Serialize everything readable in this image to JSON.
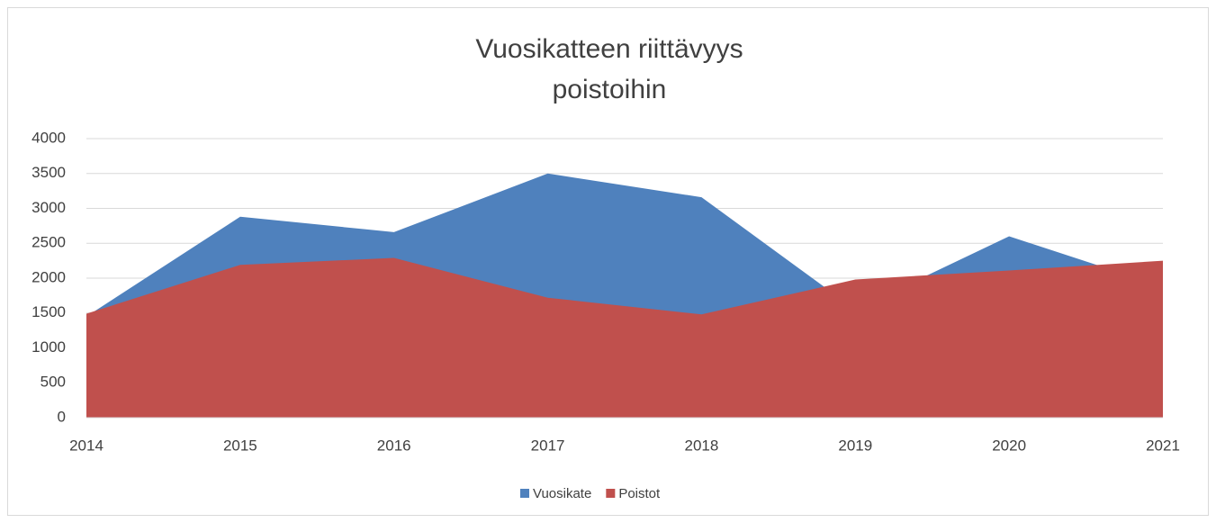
{
  "chart_data": {
    "type": "area",
    "title": [
      "Vuosikatteen riittävyys",
      "poistoihin"
    ],
    "categories": [
      "2014",
      "2015",
      "2016",
      "2017",
      "2018",
      "2019",
      "2020",
      "2021"
    ],
    "series": [
      {
        "name": "Vuosikate",
        "color": "#4f81bd",
        "values": [
          1450,
          2880,
          2660,
          3500,
          3160,
          1550,
          2600,
          1880
        ]
      },
      {
        "name": "Poistot",
        "color": "#c0504d",
        "values": [
          1490,
          2190,
          2290,
          1720,
          1480,
          1980,
          2110,
          2250
        ]
      }
    ],
    "ylim": [
      0,
      4000
    ],
    "yticks": [
      0,
      500,
      1000,
      1500,
      2000,
      2500,
      3000,
      3500,
      4000
    ],
    "grid": true,
    "legend": "bottom"
  }
}
